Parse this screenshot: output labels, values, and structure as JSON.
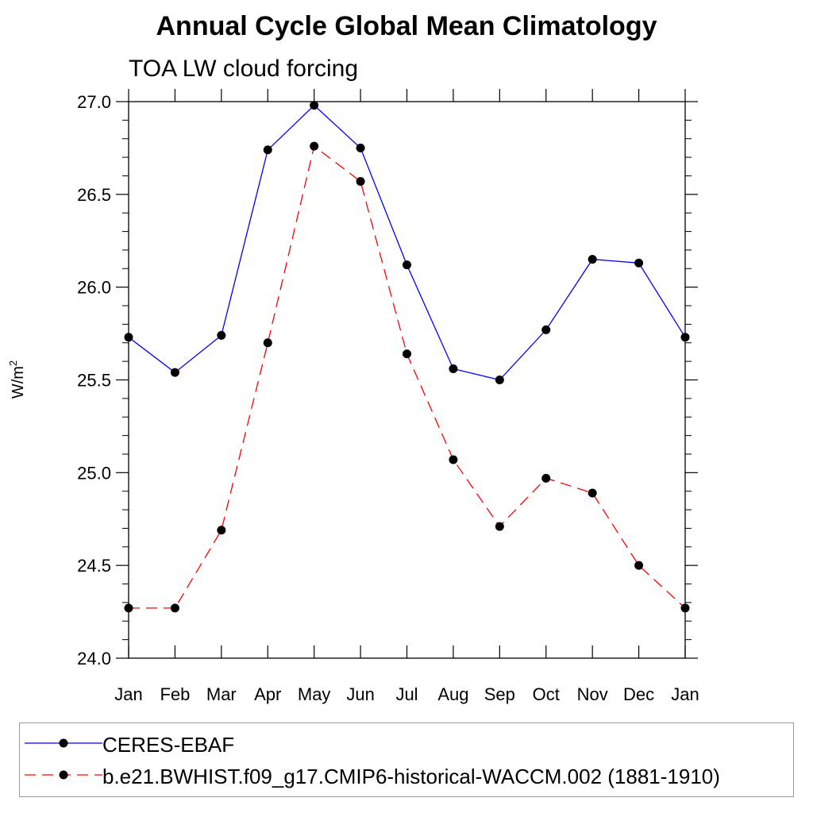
{
  "chart_data": {
    "type": "line",
    "title": "Annual Cycle Global Mean Climatology",
    "subtitle": "TOA LW cloud forcing",
    "ylabel_base": "W/m",
    "ylabel_sup": "2",
    "xlabel": "",
    "ylim": [
      24.0,
      27.0
    ],
    "y_major_ticks": [
      24.0,
      24.5,
      25.0,
      25.5,
      26.0,
      26.5,
      27.0
    ],
    "y_tick_labels": [
      "24.0",
      "24.5",
      "25.0",
      "25.5",
      "26.0",
      "26.5",
      "27.0"
    ],
    "categories": [
      "Jan",
      "Feb",
      "Mar",
      "Apr",
      "May",
      "Jun",
      "Jul",
      "Aug",
      "Sep",
      "Oct",
      "Nov",
      "Dec",
      "Jan"
    ],
    "series": [
      {
        "name": "CERES-EBAF",
        "color": "#0000ff",
        "dash": "solid",
        "values": [
          25.73,
          25.54,
          25.74,
          26.74,
          26.98,
          26.75,
          26.12,
          25.56,
          25.5,
          25.77,
          26.15,
          26.13,
          25.73
        ]
      },
      {
        "name": "b.e21.BWHIST.f09_g17.CMIP6-historical-WACCM.002 (1881-1910)",
        "color": "#ff0000",
        "dash": "dashed",
        "values": [
          24.27,
          24.27,
          24.69,
          25.7,
          26.76,
          26.57,
          25.64,
          25.07,
          24.71,
          24.97,
          24.89,
          24.5,
          24.27
        ]
      }
    ],
    "grid": false,
    "legend_position": "bottom"
  }
}
